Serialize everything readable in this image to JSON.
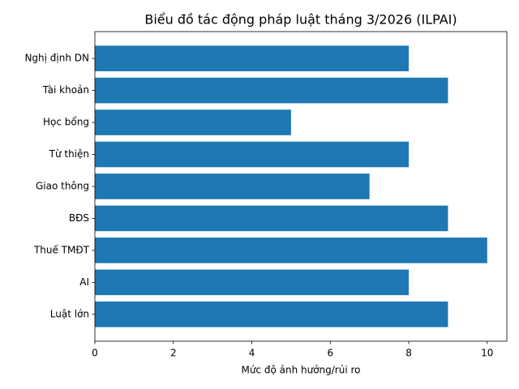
{
  "chart_data": {
    "type": "barh",
    "title": "Biểu đồ tác động pháp luật tháng 3/2026 (ILPAI)",
    "xlabel": "Mức độ ảnh hưởng/rủi ro",
    "categories": [
      "Luật lớn",
      "AI",
      "Thuế TMĐT",
      "BĐS",
      "Giao thông",
      "Từ thiện",
      "Học bổng",
      "Tài khoản",
      "Nghị định DN"
    ],
    "values": [
      9,
      8,
      10,
      9,
      7,
      8,
      5,
      9,
      8
    ],
    "color": "#1f77b4",
    "xlim": [
      0,
      10.5
    ],
    "xticks": [
      0,
      2,
      4,
      6,
      8,
      10
    ],
    "grid": false
  }
}
